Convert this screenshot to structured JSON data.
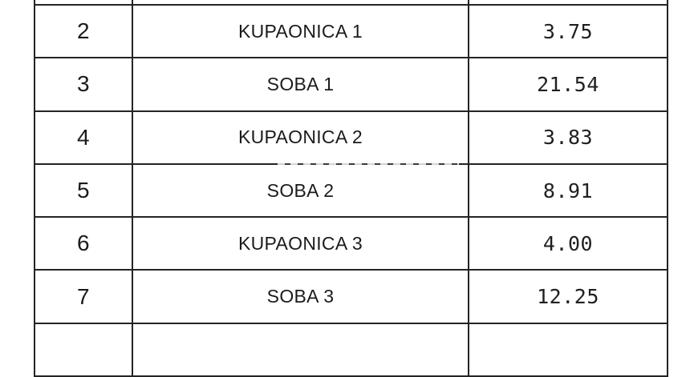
{
  "table": {
    "columns": {
      "col1": "row-number",
      "col2": "room-name",
      "col3": "area-value"
    },
    "rows": [
      {
        "num": "2",
        "name": "KUPAONICA 1",
        "area": "3.75"
      },
      {
        "num": "3",
        "name": "SOBA 1",
        "area": "21.54"
      },
      {
        "num": "4",
        "name": "KUPAONICA 2",
        "area": "3.83"
      },
      {
        "num": "5",
        "name": "SOBA 2",
        "area": "8.91"
      },
      {
        "num": "6",
        "name": "KUPAONICA 3",
        "area": "4.00"
      },
      {
        "num": "7",
        "name": "SOBA 3",
        "area": "12.25"
      }
    ]
  },
  "colors": {
    "background": "#ffffff",
    "border": "#242424",
    "text": "#1b1b1b"
  }
}
